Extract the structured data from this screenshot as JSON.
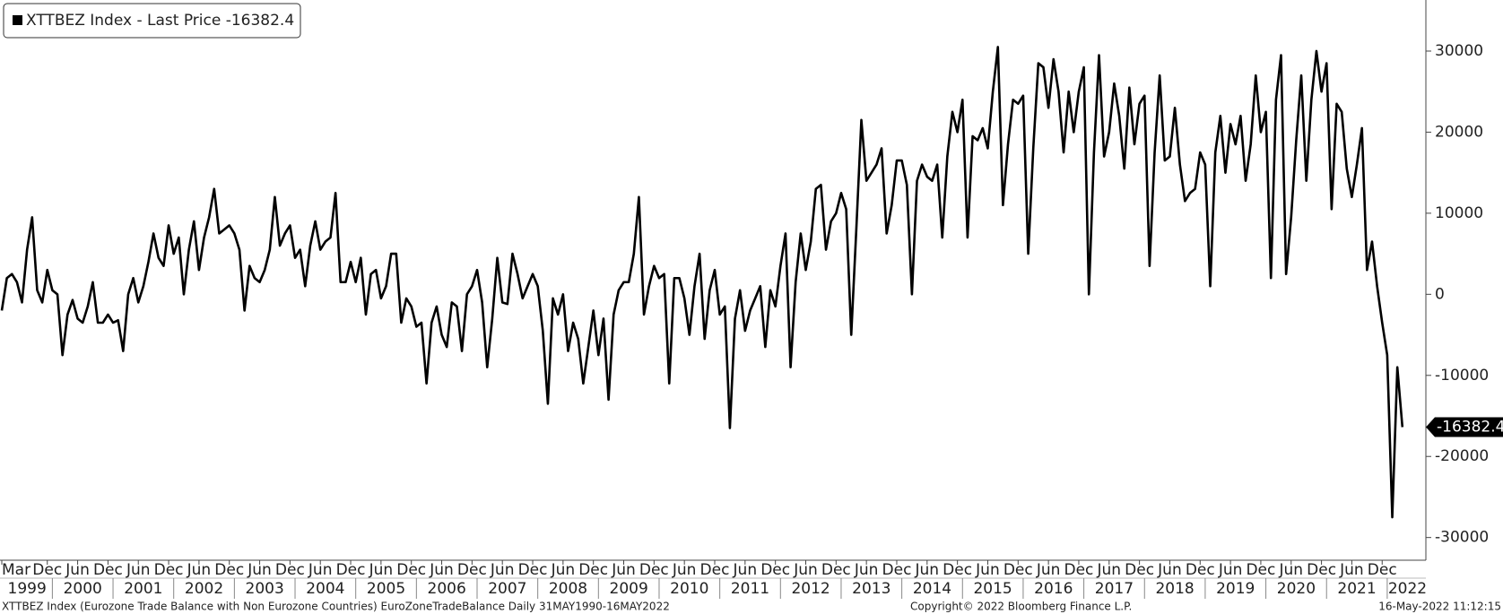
{
  "chart_data": {
    "type": "line",
    "series": [
      {
        "name": "XTTBEZ Index - Last Price -16382.4",
        "color": "#000000",
        "values": [
          -2000,
          2000,
          2500,
          1500,
          -1000,
          5500,
          9500,
          500,
          -1000,
          3000,
          500,
          0,
          -7500,
          -2500,
          -700,
          -3000,
          -3500,
          -1500,
          1500,
          -3500,
          -3500,
          -2500,
          -3500,
          -3200,
          -7000,
          0,
          2000,
          -1000,
          1000,
          4000,
          7500,
          4500,
          3500,
          8500,
          5000,
          7000,
          0,
          5500,
          9000,
          3000,
          7000,
          9500,
          13000,
          7500,
          8000,
          8500,
          7500,
          5500,
          -2000,
          3500,
          2000,
          1500,
          3000,
          5500,
          12000,
          6000,
          7500,
          8500,
          4500,
          5500,
          1000,
          6000,
          9000,
          5500,
          6500,
          7000,
          12500,
          1500,
          1500,
          4000,
          1500,
          4500,
          -2500,
          2500,
          3000,
          -500,
          1000,
          5000,
          5000,
          -3500,
          -500,
          -1500,
          -4000,
          -3500,
          -11000,
          -3500,
          -1500,
          -5000,
          -6500,
          -1000,
          -1500,
          -7000,
          0,
          1000,
          3000,
          -1000,
          -9000,
          -3000,
          4500,
          -1000,
          -1200,
          5000,
          2500,
          -500,
          1000,
          2500,
          1000,
          -4500,
          -13500,
          -500,
          -2500,
          0,
          -7000,
          -3500,
          -5500,
          -11000,
          -6500,
          -2000,
          -7500,
          -3000,
          -13000,
          -2500,
          500,
          1500,
          1500,
          5000,
          12000,
          -2500,
          1000,
          3500,
          2000,
          2500,
          -11000,
          2000,
          2000,
          -500,
          -5000,
          1000,
          5000,
          -5500,
          500,
          3000,
          -2500,
          -1500,
          -16500,
          -3000,
          500,
          -4500,
          -2000,
          -500,
          1000,
          -6500,
          500,
          -1500,
          3500,
          7500,
          -9000,
          1500,
          7500,
          3000,
          6500,
          13000,
          13500,
          5500,
          9000,
          10000,
          12500,
          10500,
          -5000,
          8000,
          21500,
          14000,
          15000,
          16000,
          18000,
          7500,
          11000,
          16500,
          16500,
          13500,
          0,
          14000,
          16000,
          14500,
          14000,
          16000,
          7000,
          17000,
          22500,
          20000,
          24000,
          7000,
          19500,
          19000,
          20500,
          18000,
          25000,
          30500,
          11000,
          18500,
          24000,
          23500,
          24500,
          5000,
          18000,
          28500,
          28000,
          23000,
          29000,
          25000,
          17500,
          25000,
          20000,
          25000,
          28000,
          0,
          17500,
          29500,
          17000,
          20000,
          26000,
          22000,
          15500,
          25500,
          18500,
          23500,
          24500,
          3500,
          17500,
          27000,
          16500,
          17000,
          23000,
          16000,
          11500,
          12500,
          13000,
          17500,
          16000,
          1000,
          17500,
          22000,
          15000,
          21000,
          18500,
          22000,
          14000,
          18500,
          27000,
          20000,
          22500,
          2000,
          24000,
          29500,
          2500,
          9500,
          19000,
          27000,
          14000,
          24000,
          30000,
          25000,
          28500,
          10500,
          23500,
          22500,
          15500,
          12000,
          16000,
          20500,
          3000,
          6500,
          1000,
          -3500,
          -7500,
          -27500,
          -9000,
          -16382.4
        ]
      }
    ],
    "x": [
      "1999-03",
      "1999-04",
      "1999-05",
      "1999-06",
      "1999-07",
      "1999-08",
      "1999-09",
      "1999-10",
      "1999-11",
      "1999-12",
      "2000-01",
      "2000-02",
      "2000-03",
      "2000-04",
      "2000-05",
      "2000-06",
      "2000-07",
      "2000-08",
      "2000-09",
      "2000-10",
      "2000-11",
      "2000-12",
      "2001-01",
      "2001-02",
      "2001-03",
      "2001-04",
      "2001-05",
      "2001-06",
      "2001-07",
      "2001-08",
      "2001-09",
      "2001-10",
      "2001-11",
      "2001-12",
      "2002-01",
      "2002-02",
      "2002-03",
      "2002-04",
      "2002-05",
      "2002-06",
      "2002-07",
      "2002-08",
      "2002-09",
      "2002-10",
      "2002-11",
      "2002-12",
      "2003-01",
      "2003-02",
      "2003-03",
      "2003-04",
      "2003-05",
      "2003-06",
      "2003-07",
      "2003-08",
      "2003-09",
      "2003-10",
      "2003-11",
      "2003-12",
      "2004-01",
      "2004-02",
      "2004-03",
      "2004-04",
      "2004-05",
      "2004-06",
      "2004-07",
      "2004-08",
      "2004-09",
      "2004-10",
      "2004-11",
      "2004-12",
      "2005-01",
      "2005-02",
      "2005-03",
      "2005-04",
      "2005-05",
      "2005-06",
      "2005-07",
      "2005-08",
      "2005-09",
      "2005-10",
      "2005-11",
      "2005-12",
      "2006-01",
      "2006-02",
      "2006-03",
      "2006-04",
      "2006-05",
      "2006-06",
      "2006-07",
      "2006-08",
      "2006-09",
      "2006-10",
      "2006-11",
      "2006-12",
      "2007-01",
      "2007-02",
      "2007-03",
      "2007-04",
      "2007-05",
      "2007-06",
      "2007-07",
      "2007-08",
      "2007-09",
      "2007-10",
      "2007-11",
      "2007-12",
      "2008-01",
      "2008-02",
      "2008-03",
      "2008-04",
      "2008-05",
      "2008-06",
      "2008-07",
      "2008-08",
      "2008-09",
      "2008-10",
      "2008-11",
      "2008-12",
      "2009-01",
      "2009-02",
      "2009-03",
      "2009-04",
      "2009-05",
      "2009-06",
      "2009-07",
      "2009-08",
      "2009-09",
      "2009-10",
      "2009-11",
      "2009-12",
      "2010-01",
      "2010-02",
      "2010-03",
      "2010-04",
      "2010-05",
      "2010-06",
      "2010-07",
      "2010-08",
      "2010-09",
      "2010-10",
      "2010-11",
      "2010-12",
      "2011-01",
      "2011-02",
      "2011-03",
      "2011-04",
      "2011-05",
      "2011-06",
      "2011-07",
      "2011-08",
      "2011-09",
      "2011-10",
      "2011-11",
      "2011-12",
      "2012-01",
      "2012-02",
      "2012-03",
      "2012-04",
      "2012-05",
      "2012-06",
      "2012-07",
      "2012-08",
      "2012-09",
      "2012-10",
      "2012-11",
      "2012-12",
      "2013-01",
      "2013-02",
      "2013-03",
      "2013-04",
      "2013-05",
      "2013-06",
      "2013-07",
      "2013-08",
      "2013-09",
      "2013-10",
      "2013-11",
      "2013-12",
      "2014-01",
      "2014-02",
      "2014-03",
      "2014-04",
      "2014-05",
      "2014-06",
      "2014-07",
      "2014-08",
      "2014-09",
      "2014-10",
      "2014-11",
      "2014-12",
      "2015-01",
      "2015-02",
      "2015-03",
      "2015-04",
      "2015-05",
      "2015-06",
      "2015-07",
      "2015-08",
      "2015-09",
      "2015-10",
      "2015-11",
      "2015-12",
      "2016-01",
      "2016-02",
      "2016-03",
      "2016-04",
      "2016-05",
      "2016-06",
      "2016-07",
      "2016-08",
      "2016-09",
      "2016-10",
      "2016-11",
      "2016-12",
      "2017-01",
      "2017-02",
      "2017-03",
      "2017-04",
      "2017-05",
      "2017-06",
      "2017-07",
      "2017-08",
      "2017-09",
      "2017-10",
      "2017-11",
      "2017-12",
      "2018-01",
      "2018-02",
      "2018-03",
      "2018-04",
      "2018-05",
      "2018-06",
      "2018-07",
      "2018-08",
      "2018-09",
      "2018-10",
      "2018-11",
      "2018-12",
      "2019-01",
      "2019-02",
      "2019-03",
      "2019-04",
      "2019-05",
      "2019-06",
      "2019-07",
      "2019-08",
      "2019-09",
      "2019-10",
      "2019-11",
      "2019-12",
      "2020-01",
      "2020-02",
      "2020-03",
      "2020-04",
      "2020-05",
      "2020-06",
      "2020-07",
      "2020-08",
      "2020-09",
      "2020-10",
      "2020-11",
      "2020-12",
      "2021-01",
      "2021-02",
      "2021-03",
      "2021-04",
      "2021-05",
      "2021-06",
      "2021-07",
      "2021-08",
      "2021-09",
      "2021-10",
      "2021-11",
      "2021-12",
      "2022-01",
      "2022-02",
      "2022-03",
      "2022-04"
    ],
    "xlim": [
      "1999-03",
      "2022-09"
    ],
    "xticks": [
      {
        "value": "1999-03",
        "label": "Mar"
      },
      {
        "value": "1999-12",
        "label": "Dec"
      },
      {
        "value": "2000-06",
        "label": "Jun"
      },
      {
        "value": "2000-12",
        "label": "Dec"
      },
      {
        "value": "2001-06",
        "label": "Jun"
      },
      {
        "value": "2001-12",
        "label": "Dec"
      },
      {
        "value": "2002-06",
        "label": "Jun"
      },
      {
        "value": "2002-12",
        "label": "Dec"
      },
      {
        "value": "2003-06",
        "label": "Jun"
      },
      {
        "value": "2003-12",
        "label": "Dec"
      },
      {
        "value": "2004-06",
        "label": "Jun"
      },
      {
        "value": "2004-12",
        "label": "Dec"
      },
      {
        "value": "2005-06",
        "label": "Jun"
      },
      {
        "value": "2005-12",
        "label": "Dec"
      },
      {
        "value": "2006-06",
        "label": "Jun"
      },
      {
        "value": "2006-12",
        "label": "Dec"
      },
      {
        "value": "2007-06",
        "label": "Jun"
      },
      {
        "value": "2007-12",
        "label": "Dec"
      },
      {
        "value": "2008-06",
        "label": "Jun"
      },
      {
        "value": "2008-12",
        "label": "Dec"
      },
      {
        "value": "2009-06",
        "label": "Jun"
      },
      {
        "value": "2009-12",
        "label": "Dec"
      },
      {
        "value": "2010-06",
        "label": "Jun"
      },
      {
        "value": "2010-12",
        "label": "Dec"
      },
      {
        "value": "2011-06",
        "label": "Jun"
      },
      {
        "value": "2011-12",
        "label": "Dec"
      },
      {
        "value": "2012-06",
        "label": "Jun"
      },
      {
        "value": "2012-12",
        "label": "Dec"
      },
      {
        "value": "2013-06",
        "label": "Jun"
      },
      {
        "value": "2013-12",
        "label": "Dec"
      },
      {
        "value": "2014-06",
        "label": "Jun"
      },
      {
        "value": "2014-12",
        "label": "Dec"
      },
      {
        "value": "2015-06",
        "label": "Jun"
      },
      {
        "value": "2015-12",
        "label": "Dec"
      },
      {
        "value": "2016-06",
        "label": "Jun"
      },
      {
        "value": "2016-12",
        "label": "Dec"
      },
      {
        "value": "2017-06",
        "label": "Jun"
      },
      {
        "value": "2017-12",
        "label": "Dec"
      },
      {
        "value": "2018-06",
        "label": "Jun"
      },
      {
        "value": "2018-12",
        "label": "Dec"
      },
      {
        "value": "2019-06",
        "label": "Jun"
      },
      {
        "value": "2019-12",
        "label": "Dec"
      },
      {
        "value": "2020-06",
        "label": "Jun"
      },
      {
        "value": "2020-12",
        "label": "Dec"
      },
      {
        "value": "2021-06",
        "label": "Jun"
      },
      {
        "value": "2021-12",
        "label": "Dec"
      }
    ],
    "xticks_year": [
      1999,
      2000,
      2001,
      2002,
      2003,
      2004,
      2005,
      2006,
      2007,
      2008,
      2009,
      2010,
      2011,
      2012,
      2013,
      2014,
      2015,
      2016,
      2017,
      2018,
      2019,
      2020,
      2021,
      2022
    ],
    "ylim": [
      -32800,
      36300
    ],
    "yticks": [
      -30000,
      -20000,
      -10000,
      0,
      10000,
      20000,
      30000
    ],
    "legend": "top-left",
    "footer_left": "XTTBEZ Index (Eurozone Trade Balance with Non Eurozone Countries) EuroZoneTradeBalance  Daily 31MAY1990-16MAY2022",
    "footer_center": "Copyright© 2022 Bloomberg Finance L.P.",
    "footer_right": "16-May-2022 11:12:15"
  }
}
